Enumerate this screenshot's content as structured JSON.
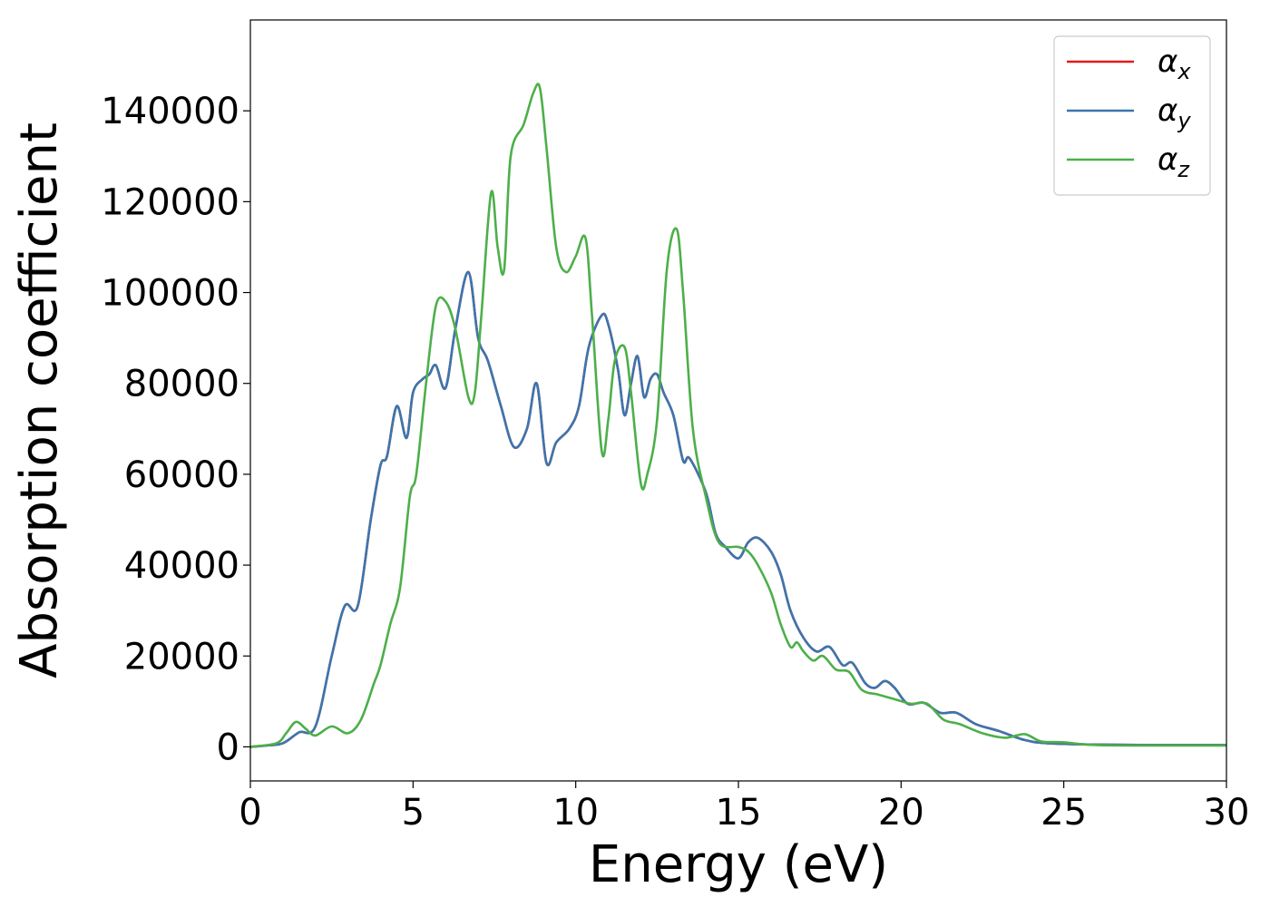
{
  "chart_data": {
    "type": "line",
    "title": "",
    "xlabel": "Energy (eV)",
    "ylabel": "Absorption coefficient",
    "xlim": [
      0,
      30
    ],
    "ylim": [
      -7500,
      160000
    ],
    "xticks": [
      0,
      5,
      10,
      15,
      20,
      25,
      30
    ],
    "yticks": [
      0,
      20000,
      40000,
      60000,
      80000,
      100000,
      120000,
      140000
    ],
    "grid": false,
    "legend_position": "top-right",
    "series": [
      {
        "name": "α",
        "name_sub": "x",
        "color": "#e41a1c",
        "x": [
          0,
          0.5,
          1.0,
          1.5,
          2.0,
          2.5,
          2.9,
          3.3,
          3.7,
          4.0,
          4.2,
          4.5,
          4.8,
          5.0,
          5.3,
          5.5,
          5.7,
          6.0,
          6.3,
          6.7,
          7.0,
          7.3,
          7.7,
          8.1,
          8.5,
          8.8,
          9.1,
          9.4,
          9.8,
          10.1,
          10.4,
          10.8,
          11.0,
          11.3,
          11.5,
          11.7,
          11.9,
          12.1,
          12.3,
          12.5,
          12.7,
          13.0,
          13.3,
          13.5,
          14.0,
          14.3,
          14.6,
          15.0,
          15.3,
          15.6,
          16.0,
          16.3,
          16.6,
          17.0,
          17.4,
          17.8,
          18.2,
          18.5,
          18.9,
          19.2,
          19.5,
          19.8,
          20.2,
          20.7,
          21.2,
          21.7,
          22.3,
          23.0,
          23.8,
          24.5,
          26.0,
          28.0,
          30.0
        ],
        "values": [
          0,
          300,
          800,
          3200,
          4500,
          20000,
          31000,
          31000,
          50000,
          62000,
          64000,
          75000,
          68000,
          78000,
          81000,
          82000,
          84000,
          79000,
          92000,
          104500,
          90000,
          85000,
          75000,
          66000,
          70000,
          80000,
          62500,
          67000,
          70000,
          75000,
          88000,
          95000,
          93000,
          83000,
          73000,
          80000,
          86000,
          77000,
          81000,
          82000,
          78000,
          73000,
          63000,
          63500,
          56000,
          47000,
          44000,
          41500,
          45000,
          46000,
          43000,
          38000,
          30000,
          24000,
          21000,
          22000,
          18000,
          18500,
          14000,
          13000,
          14500,
          13000,
          9500,
          9700,
          7500,
          7500,
          5000,
          3500,
          1500,
          800,
          500,
          400,
          400
        ]
      },
      {
        "name": "α",
        "name_sub": "y",
        "color": "#3a76ae",
        "x": [
          0,
          0.5,
          1.0,
          1.5,
          2.0,
          2.5,
          2.9,
          3.3,
          3.7,
          4.0,
          4.2,
          4.5,
          4.8,
          5.0,
          5.3,
          5.5,
          5.7,
          6.0,
          6.3,
          6.7,
          7.0,
          7.3,
          7.7,
          8.1,
          8.5,
          8.8,
          9.1,
          9.4,
          9.8,
          10.1,
          10.4,
          10.8,
          11.0,
          11.3,
          11.5,
          11.7,
          11.9,
          12.1,
          12.3,
          12.5,
          12.7,
          13.0,
          13.3,
          13.5,
          14.0,
          14.3,
          14.6,
          15.0,
          15.3,
          15.6,
          16.0,
          16.3,
          16.6,
          17.0,
          17.4,
          17.8,
          18.2,
          18.5,
          18.9,
          19.2,
          19.5,
          19.8,
          20.2,
          20.7,
          21.2,
          21.7,
          22.3,
          23.0,
          23.8,
          24.5,
          26.0,
          28.0,
          30.0
        ],
        "values": [
          0,
          300,
          800,
          3200,
          4500,
          20000,
          31000,
          31000,
          50000,
          62000,
          64000,
          75000,
          68000,
          78000,
          81000,
          82000,
          84000,
          79000,
          92000,
          104500,
          90000,
          85000,
          75000,
          66000,
          70000,
          80000,
          62500,
          67000,
          70000,
          75000,
          88000,
          95000,
          93000,
          83000,
          73000,
          80000,
          86000,
          77000,
          81000,
          82000,
          78000,
          73000,
          63000,
          63500,
          56000,
          47000,
          44000,
          41500,
          45000,
          46000,
          43000,
          38000,
          30000,
          24000,
          21000,
          22000,
          18000,
          18500,
          14000,
          13000,
          14500,
          13000,
          9500,
          9700,
          7500,
          7500,
          5000,
          3500,
          1500,
          800,
          500,
          400,
          400
        ]
      },
      {
        "name": "α",
        "name_sub": "z",
        "color": "#4daf4a",
        "x": [
          0,
          0.8,
          1.1,
          1.4,
          1.7,
          2.0,
          2.5,
          3.0,
          3.4,
          3.8,
          4.0,
          4.3,
          4.6,
          4.9,
          5.1,
          5.4,
          5.7,
          6.0,
          6.3,
          6.7,
          6.9,
          7.1,
          7.4,
          7.6,
          7.8,
          8.0,
          8.4,
          8.7,
          8.9,
          9.1,
          9.4,
          9.7,
          10.0,
          10.3,
          10.5,
          10.8,
          11.0,
          11.2,
          11.5,
          11.7,
          12.0,
          12.2,
          12.5,
          12.8,
          13.1,
          13.3,
          13.6,
          14.0,
          14.4,
          15.0,
          15.3,
          15.6,
          16.0,
          16.3,
          16.6,
          16.8,
          17.0,
          17.3,
          17.6,
          18.0,
          18.4,
          18.8,
          19.3,
          19.8,
          20.3,
          20.8,
          21.3,
          21.8,
          22.5,
          23.2,
          23.8,
          24.3,
          25.0,
          26.0,
          28.0,
          30.0
        ],
        "values": [
          0,
          800,
          3000,
          5500,
          4000,
          2500,
          4500,
          3000,
          6000,
          14000,
          18000,
          27000,
          35000,
          55000,
          60000,
          80000,
          97000,
          98000,
          92000,
          77000,
          78000,
          95000,
          122000,
          110000,
          105000,
          130000,
          137000,
          144000,
          145000,
          132000,
          110000,
          104500,
          108000,
          112000,
          95000,
          65000,
          72000,
          85000,
          88000,
          78000,
          58000,
          60000,
          72000,
          105000,
          114000,
          100000,
          70000,
          55000,
          45000,
          44000,
          43000,
          40000,
          34000,
          27000,
          22000,
          23000,
          21000,
          19000,
          20000,
          17000,
          16500,
          12500,
          11500,
          10500,
          9500,
          9500,
          6000,
          5000,
          3000,
          2000,
          2800,
          1200,
          1000,
          400,
          300,
          300
        ]
      }
    ]
  }
}
